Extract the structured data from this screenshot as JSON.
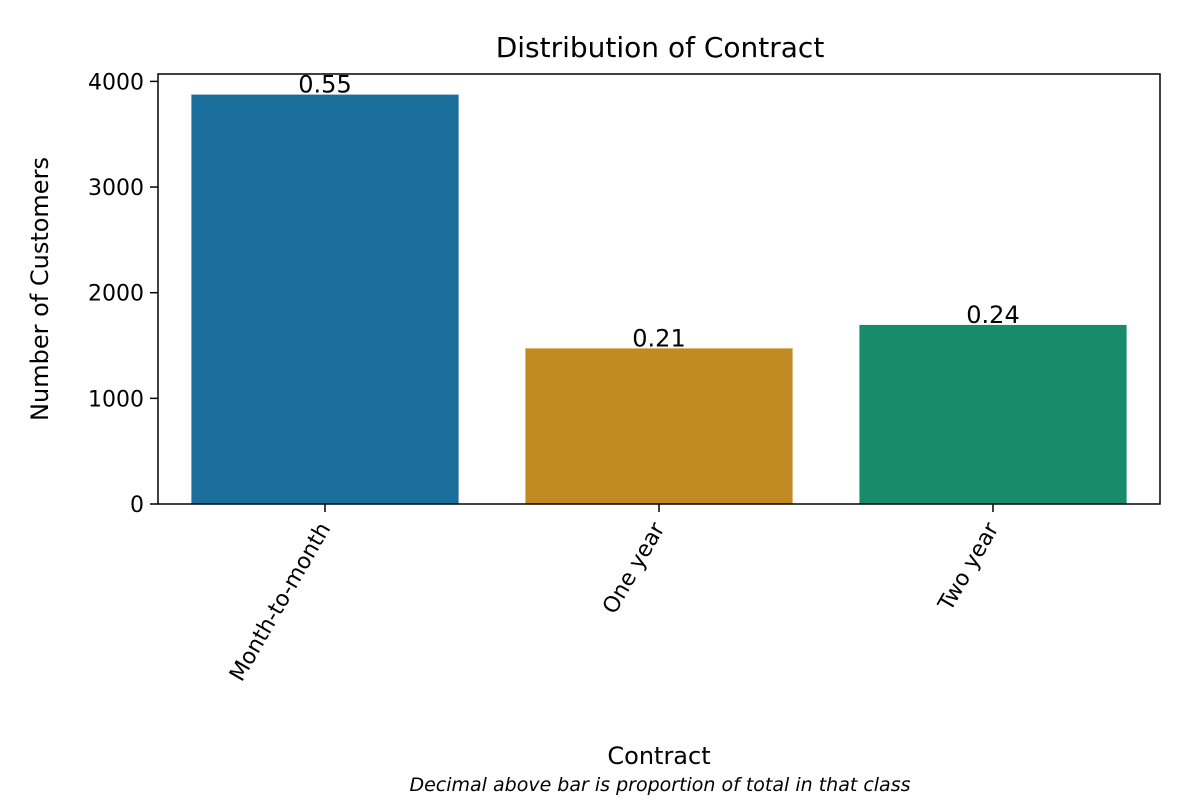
{
  "chart_data": {
    "type": "bar",
    "title": "Distribution of Contract",
    "xlabel": "Contract",
    "ylabel": "Number of Customers",
    "note": "Decimal above bar is proportion of total in that class",
    "categories": [
      "Month-to-month",
      "One year",
      "Two year"
    ],
    "values": [
      3875,
      1473,
      1695
    ],
    "proportion_labels": [
      "0.55",
      "0.21",
      "0.24"
    ],
    "colors": [
      "#1a6e9c",
      "#c28a22",
      "#178c6a"
    ],
    "ylim": [
      0,
      4070
    ],
    "yticks": [
      0,
      1000,
      2000,
      3000,
      4000
    ],
    "ytick_labels": [
      "0",
      "1000",
      "2000",
      "3000",
      "4000"
    ],
    "grid": false,
    "legend": "none"
  }
}
